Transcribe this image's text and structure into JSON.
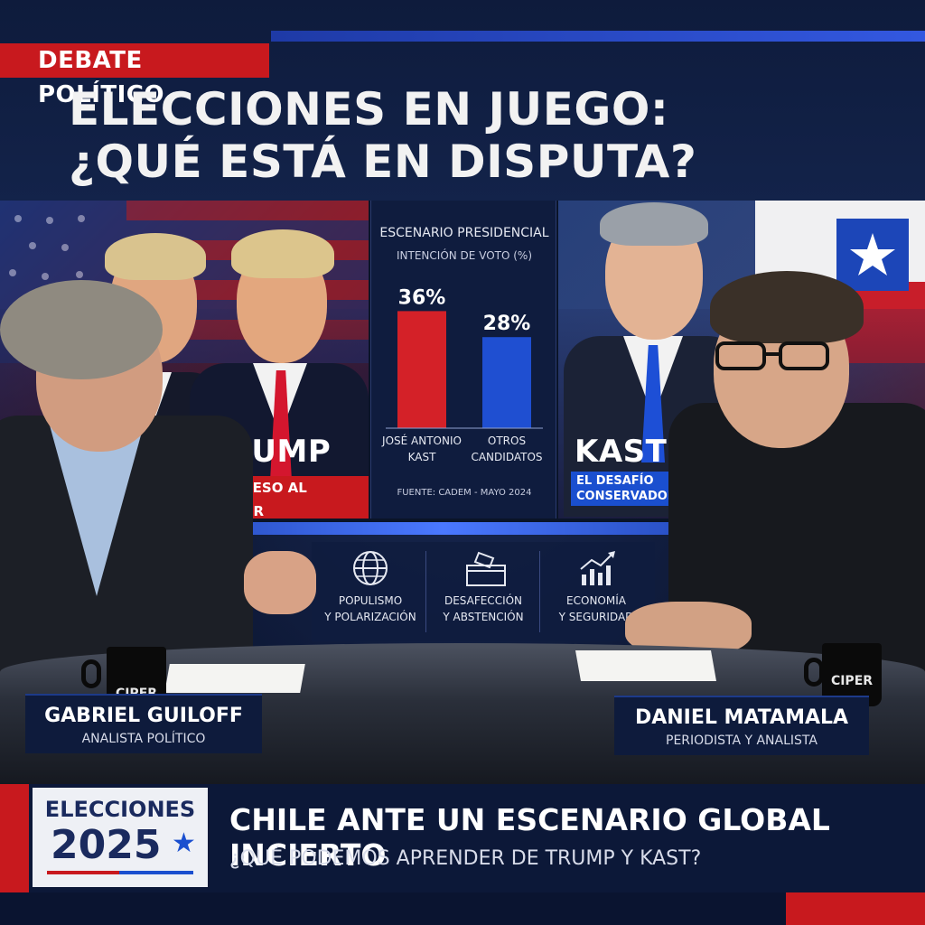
{
  "header": {
    "tag": "DEBATE POLÍTICO",
    "headline_line1": "ELECCIONES EN JUEGO:",
    "headline_line2": "¿QUÉ ESTÁ EN DISPUTA?"
  },
  "left_panel": {
    "name": "TRUMP",
    "label": "REGRESO AL PODER"
  },
  "right_panel": {
    "name": "KAST",
    "label_line1": "EL DESAFÍO",
    "label_line2": "CONSERVADOR"
  },
  "chart_data": {
    "type": "bar",
    "title": "ESCENARIO PRESIDENCIAL",
    "subtitle": "INTENCIÓN DE VOTO (%)",
    "categories": [
      "JOSÉ ANTONIO KAST",
      "OTROS CANDIDATOS"
    ],
    "category_lines": [
      [
        "JOSÉ ANTONIO",
        "KAST"
      ],
      [
        "OTROS",
        "CANDIDATOS"
      ]
    ],
    "values": [
      36,
      28
    ],
    "value_labels": [
      "36%",
      "28%"
    ],
    "colors": [
      "#d42128",
      "#1f4fd1"
    ],
    "ylim": [
      0,
      40
    ],
    "source": "FUENTE: CADEM - MAYO 2024"
  },
  "topics": [
    {
      "icon": "globe-icon",
      "line1": "POPULISMO",
      "line2": "Y POLARIZACIÓN"
    },
    {
      "icon": "ballot-box-icon",
      "line1": "DESAFECCIÓN",
      "line2": "Y ABSTENCIÓN"
    },
    {
      "icon": "growth-chart-icon",
      "line1": "ECONOMÍA",
      "line2": "Y SEGURIDAD"
    }
  ],
  "mug_brand": "CIPER",
  "guests": [
    {
      "name": "GABRIEL GUILOFF",
      "role": "ANALISTA POLÍTICO"
    },
    {
      "name": "DANIEL MATAMALA",
      "role": "PERIODISTA Y ANALISTA"
    }
  ],
  "lower_third": {
    "logo_top": "ELECCIONES",
    "logo_year": "2025",
    "logo_star": "★",
    "title": "CHILE ANTE UN ESCENARIO GLOBAL INCIERTO",
    "subtitle": "¿QUÉ PODEMOS APRENDER DE TRUMP Y KAST?"
  },
  "colors": {
    "red": "#c8191e",
    "blue": "#1a4fcf",
    "navy": "#0e1b3c"
  }
}
